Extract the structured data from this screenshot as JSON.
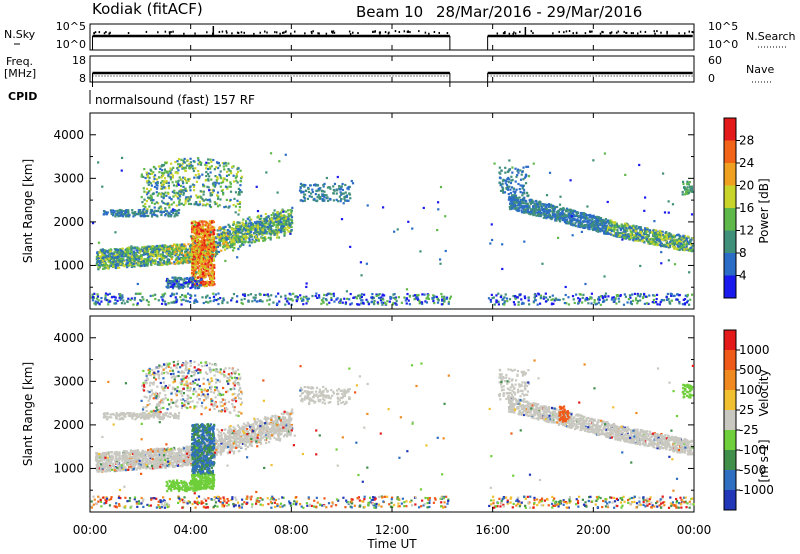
{
  "header": {
    "radar": "Kodiak (fitACF)",
    "beam": "Beam 10",
    "dates": "28/Mar/2016 - 29/Mar/2016"
  },
  "top_panel": {
    "left_label": "N.Sky",
    "right_label": "N.Search",
    "yticks_left": [
      "10^5",
      "10^0"
    ],
    "yticks_right": [
      "10^5",
      "10^0"
    ],
    "gap_hours": [
      14.3,
      15.8
    ]
  },
  "freq_panel": {
    "left_label_1": "Freq.",
    "left_label_2": "[MHz]",
    "right_label": "Nave",
    "yticks_left": [
      "18",
      "8"
    ],
    "yticks_right": [
      "60",
      "0"
    ]
  },
  "cpid": {
    "label": "CPID",
    "value": "normalsound (fast) 157 RF"
  },
  "chart_data": [
    {
      "type": "heatmap",
      "title": "",
      "xlabel": "",
      "ylabel": "Slant Range [km]",
      "xlim": [
        0,
        24
      ],
      "ylim": [
        0,
        4500
      ],
      "xticks": [
        "00:00",
        "04:00",
        "08:00",
        "12:00",
        "16:00",
        "20:00",
        "00:00"
      ],
      "yticks": [
        1000,
        2000,
        3000,
        4000
      ],
      "colorbar": {
        "label": "Power [dB]",
        "ticks": [
          "4",
          "8",
          "12",
          "16",
          "20",
          "24",
          "28"
        ],
        "colors": [
          "#1a1aee",
          "#2b6cc7",
          "#3f8f7a",
          "#5fb84a",
          "#c9d42a",
          "#f0a020",
          "#f26418",
          "#e41a1a"
        ]
      },
      "features": [
        {
          "desc": "band",
          "x0": 0.3,
          "x1": 7.9,
          "y0": 1150,
          "y1": 2400,
          "level": 3
        },
        {
          "desc": "band",
          "x0": 16.8,
          "x1": 23.8,
          "y0": 1400,
          "y1": 2000,
          "level": 2
        },
        {
          "desc": "spike",
          "x": 4.6,
          "y0": 600,
          "y1": 2000,
          "level": 5
        }
      ]
    },
    {
      "type": "heatmap",
      "title": "",
      "xlabel": "Time UT",
      "ylabel": "Slant Range [km]",
      "xlim": [
        0,
        24
      ],
      "ylim": [
        0,
        4500
      ],
      "xticks": [
        "00:00",
        "04:00",
        "08:00",
        "12:00",
        "16:00",
        "20:00",
        "00:00"
      ],
      "yticks": [
        1000,
        2000,
        3000,
        4000
      ],
      "colorbar": {
        "label": "Velocity",
        "unit": "[m s-1]",
        "ticks": [
          "1000",
          "500",
          "100",
          "25",
          "-25",
          "-100",
          "-500",
          "-1000"
        ],
        "colors": [
          "#2236b8",
          "#2f6ec0",
          "#3f8f4a",
          "#6fcf3a",
          "#c8c8c0",
          "#f0c030",
          "#f08a20",
          "#f05a18",
          "#e41a1a"
        ]
      }
    }
  ],
  "colors": {
    "axis": "#000000",
    "gray_scatter": "#c8c8c0"
  }
}
